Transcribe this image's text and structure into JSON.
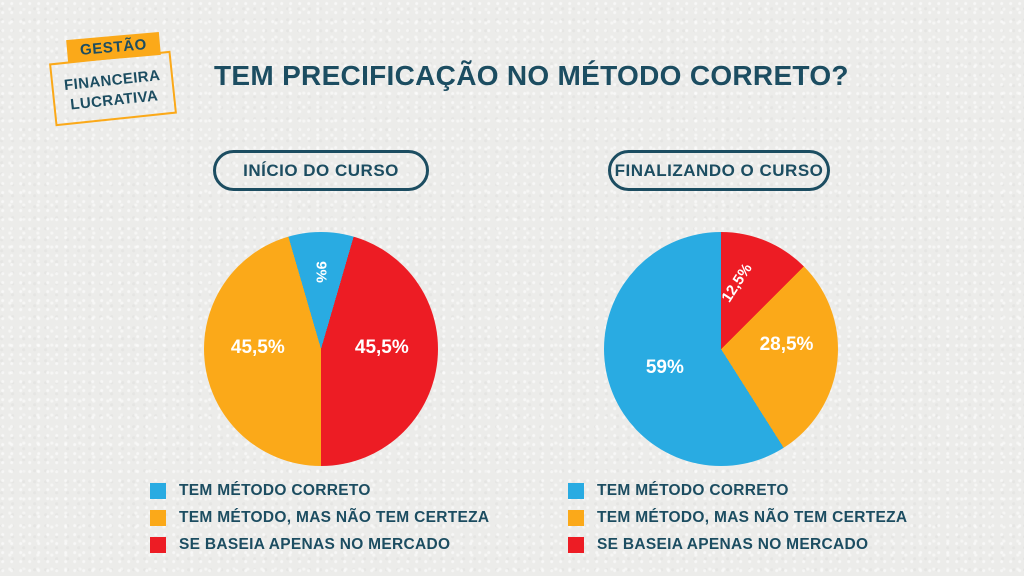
{
  "colors": {
    "blue": "#29ABE2",
    "orange": "#FBA919",
    "red": "#ED1C24",
    "dark": "#1C4D61",
    "bg": "#ECECEA",
    "label_text": "#FFFFFF"
  },
  "logo": {
    "badge": "GESTÃO",
    "line1": "FINANCEIRA",
    "line2": "LUCRATIVA"
  },
  "title": "TEM PRECIFICAÇÃO NO MÉTODO CORRETO?",
  "legend": {
    "items": [
      {
        "label": "TEM MÉTODO CORRETO",
        "color": "blue"
      },
      {
        "label": "TEM MÉTODO, MAS NÃO TEM CERTEZA",
        "color": "orange"
      },
      {
        "label": "SE BASEIA APENAS NO MERCADO",
        "color": "red"
      }
    ]
  },
  "chart_data": [
    {
      "type": "pie",
      "title": "INÍCIO DO CURSO",
      "start_angle": -16.2,
      "legend_position": "bottom",
      "slices": [
        {
          "label": "TEM MÉTODO CORRETO",
          "value": 9,
          "display": "9%",
          "color": "blue"
        },
        {
          "label": "SE BASEIA APENAS NO MERCADO",
          "value": 45.5,
          "display": "45,5%",
          "color": "red"
        },
        {
          "label": "TEM MÉTODO, MAS NÃO TEM CERTEZA",
          "value": 45.5,
          "display": "45,5%",
          "color": "orange"
        }
      ]
    },
    {
      "type": "pie",
      "title": "FINALIZANDO O CURSO",
      "start_angle": 0,
      "legend_position": "bottom",
      "slices": [
        {
          "label": "SE BASEIA APENAS NO MERCADO",
          "value": 12.5,
          "display": "12,5%",
          "color": "red"
        },
        {
          "label": "TEM MÉTODO, MAS NÃO TEM CERTEZA",
          "value": 28.5,
          "display": "28,5%",
          "color": "orange"
        },
        {
          "label": "TEM MÉTODO CORRETO",
          "value": 59,
          "display": "59%",
          "color": "blue"
        }
      ]
    }
  ]
}
